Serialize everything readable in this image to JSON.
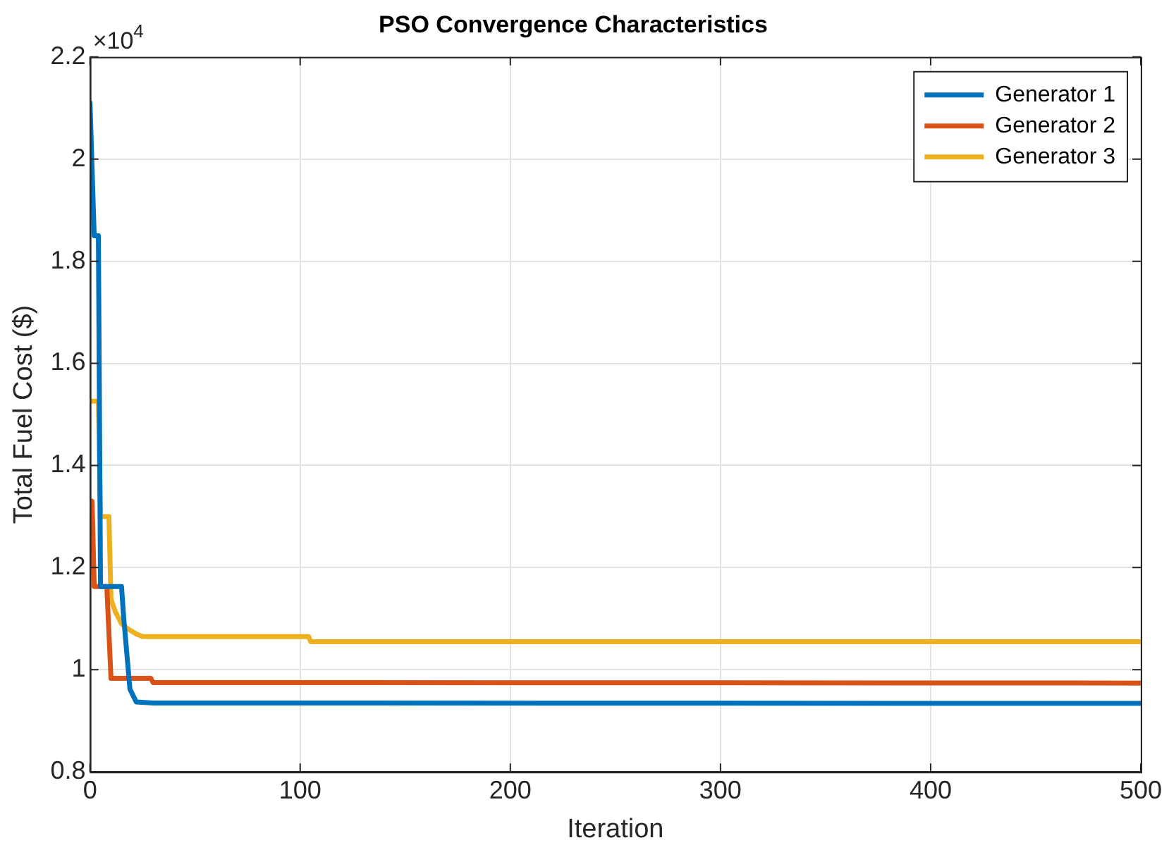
{
  "chart_data": {
    "type": "line",
    "title": "PSO Convergence Characteristics",
    "xlabel": "Iteration",
    "ylabel": "Total Fuel Cost ($)",
    "annotations": [
      "×10$^{4}$"
    ],
    "xlim": [
      0,
      500
    ],
    "xticks": [
      0,
      100,
      200,
      300,
      400,
      500
    ],
    "ylim": [
      0.8,
      2.2
    ],
    "yticks": [
      0.8,
      1,
      1.2,
      1.4,
      1.6,
      1.8,
      2,
      2.2
    ],
    "grid": true,
    "legend": "top right",
    "marker": "none",
    "line_style": "solid",
    "series": [
      {
        "name": "Generator 1",
        "color": "#0072bd",
        "x": [
          0,
          2,
          4,
          5,
          15,
          16,
          19,
          22,
          30,
          500
        ],
        "values": [
          2.11,
          1.85,
          1.85,
          1.163,
          1.163,
          1.104,
          0.962,
          0.937,
          0.935,
          0.934
        ]
      },
      {
        "name": "Generator 2",
        "color": "#d95319",
        "x": [
          0,
          1,
          2,
          8,
          10,
          29,
          30,
          500
        ],
        "values": [
          1.325,
          1.33,
          1.163,
          1.163,
          0.983,
          0.983,
          0.975,
          0.974
        ]
      },
      {
        "name": "Generator 3",
        "color": "#edb120",
        "x": [
          0,
          4,
          5,
          9,
          10,
          12,
          15,
          18,
          22,
          25,
          104,
          105,
          500
        ],
        "values": [
          1.526,
          1.526,
          1.3,
          1.3,
          1.138,
          1.114,
          1.09,
          1.08,
          1.07,
          1.065,
          1.065,
          1.055,
          1.055
        ]
      }
    ]
  }
}
